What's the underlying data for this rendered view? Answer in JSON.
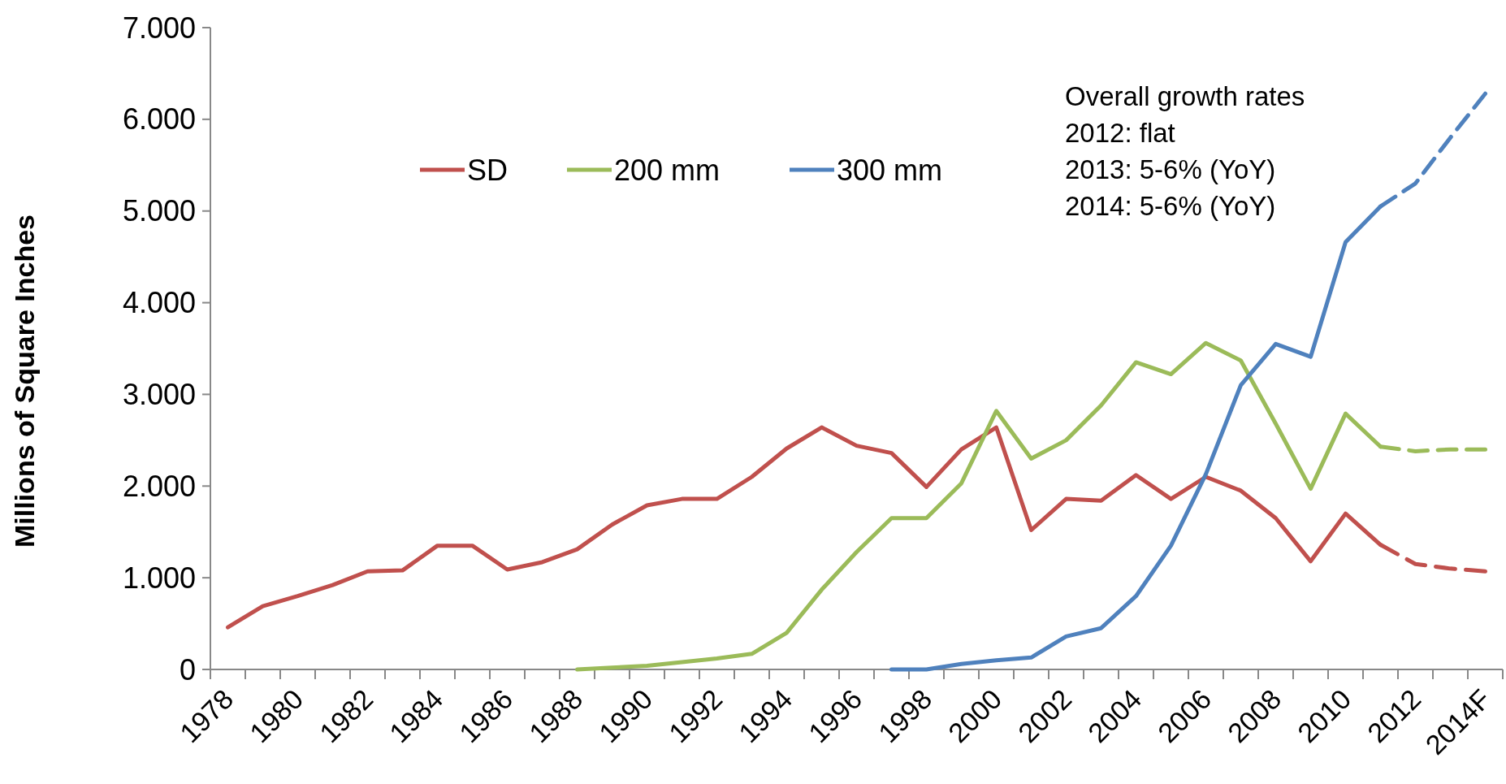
{
  "chart_data": {
    "type": "line",
    "ylabel": "Millions  of Square Inches",
    "categories": [
      "1978",
      null,
      "1980",
      null,
      "1982",
      null,
      "1984",
      null,
      "1986",
      null,
      "1988",
      null,
      "1990",
      null,
      "1992",
      null,
      "1994",
      null,
      "1996",
      null,
      "1998",
      null,
      "2000",
      null,
      "2002",
      null,
      "2004",
      null,
      "2006",
      null,
      "2008",
      null,
      "2010",
      null,
      "2012",
      null,
      "2014F"
    ],
    "series": [
      {
        "name": "SD",
        "color": "#c0504d",
        "line_style": "solid",
        "values": [
          460,
          690,
          800,
          920,
          1070,
          1080,
          1350,
          1350,
          1090,
          1170,
          1310,
          1580,
          1790,
          1860,
          1860,
          2100,
          2410,
          2640,
          2440,
          2360,
          1990,
          2400,
          2640,
          1520,
          1860,
          1840,
          2120,
          1860,
          2100,
          1950,
          1650,
          1180,
          1700,
          1360,
          null,
          null,
          null
        ]
      },
      {
        "name": "200 mm",
        "color": "#9bbb59",
        "line_style": "solid",
        "values": [
          null,
          null,
          null,
          null,
          null,
          null,
          null,
          null,
          null,
          null,
          0,
          20,
          40,
          80,
          120,
          170,
          400,
          870,
          1280,
          1650,
          1650,
          2030,
          2820,
          2300,
          2500,
          2880,
          3350,
          3220,
          3560,
          3370,
          2680,
          1970,
          2790,
          2430,
          null,
          null,
          null
        ]
      },
      {
        "name": "300 mm",
        "color": "#4f81bd",
        "line_style": "solid",
        "values": [
          null,
          null,
          null,
          null,
          null,
          null,
          null,
          null,
          null,
          null,
          null,
          null,
          null,
          null,
          null,
          null,
          null,
          null,
          null,
          0,
          0,
          60,
          100,
          130,
          360,
          450,
          800,
          1350,
          2130,
          3100,
          3550,
          3410,
          4660,
          5050,
          null,
          null,
          null
        ]
      },
      {
        "color": "#c0504d",
        "line_style": "dashed",
        "values": [
          null,
          null,
          null,
          null,
          null,
          null,
          null,
          null,
          null,
          null,
          null,
          null,
          null,
          null,
          null,
          null,
          null,
          null,
          null,
          null,
          null,
          null,
          null,
          null,
          null,
          null,
          null,
          null,
          null,
          null,
          null,
          null,
          null,
          1360,
          1150,
          1100,
          1070
        ]
      },
      {
        "color": "#9bbb59",
        "line_style": "dashed",
        "values": [
          null,
          null,
          null,
          null,
          null,
          null,
          null,
          null,
          null,
          null,
          null,
          null,
          null,
          null,
          null,
          null,
          null,
          null,
          null,
          null,
          null,
          null,
          null,
          null,
          null,
          null,
          null,
          null,
          null,
          null,
          null,
          null,
          null,
          2430,
          2380,
          2400,
          2400
        ]
      },
      {
        "color": "#4f81bd",
        "line_style": "dashed",
        "values": [
          null,
          null,
          null,
          null,
          null,
          null,
          null,
          null,
          null,
          null,
          null,
          null,
          null,
          null,
          null,
          null,
          null,
          null,
          null,
          null,
          null,
          null,
          null,
          null,
          null,
          null,
          null,
          null,
          null,
          null,
          null,
          null,
          null,
          5050,
          5300,
          5800,
          6280
        ]
      }
    ],
    "ylim": [
      0,
      7000
    ],
    "yticks": [
      0,
      {
        "value": 1000,
        "label": "1.000"
      },
      {
        "value": 2000,
        "label": "2.000"
      },
      {
        "value": 3000,
        "label": "3.000"
      },
      {
        "value": 4000,
        "label": "4.000"
      },
      {
        "value": 5000,
        "label": "5.000"
      },
      {
        "value": 6000,
        "label": "6.000"
      },
      {
        "value": 7000,
        "label": "7.000"
      }
    ],
    "annotations": [
      "Overall growth rates",
      "2012: flat",
      "2013: 5-6% (YoY)",
      "2014: 5-6% (YoY)"
    ],
    "legend": "top",
    "grid": false,
    "marker": "none"
  }
}
